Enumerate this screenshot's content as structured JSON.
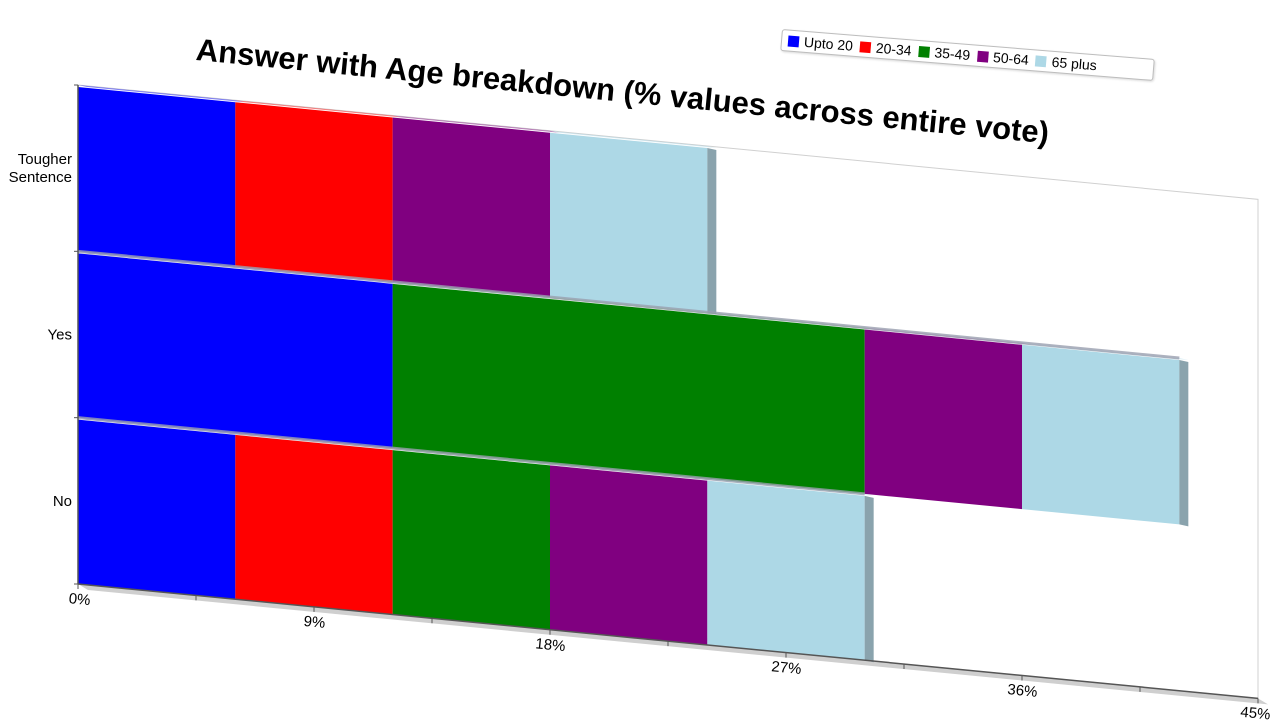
{
  "chart_data": {
    "type": "bar",
    "orientation": "horizontal",
    "stacked": true,
    "title": "Answer with Age breakdown (% values across entire vote)",
    "categories": [
      "Tougher Sentence",
      "Yes",
      "No"
    ],
    "series": [
      {
        "name": "Upto 20",
        "color": "#0000ff",
        "values": [
          6,
          12,
          6
        ]
      },
      {
        "name": "20-34",
        "color": "#ff0000",
        "values": [
          6,
          0,
          6
        ]
      },
      {
        "name": "35-49",
        "color": "#008000",
        "values": [
          0,
          18,
          6
        ]
      },
      {
        "name": "50-64",
        "color": "#800080",
        "values": [
          6,
          6,
          6
        ]
      },
      {
        "name": "65 plus",
        "color": "#add8e6",
        "values": [
          6,
          6,
          6
        ]
      }
    ],
    "xlim": [
      0,
      45
    ],
    "xticks": [
      "0%",
      "9%",
      "18%",
      "27%",
      "36%",
      "45%"
    ],
    "legend_position": "top-right",
    "grid": false
  }
}
